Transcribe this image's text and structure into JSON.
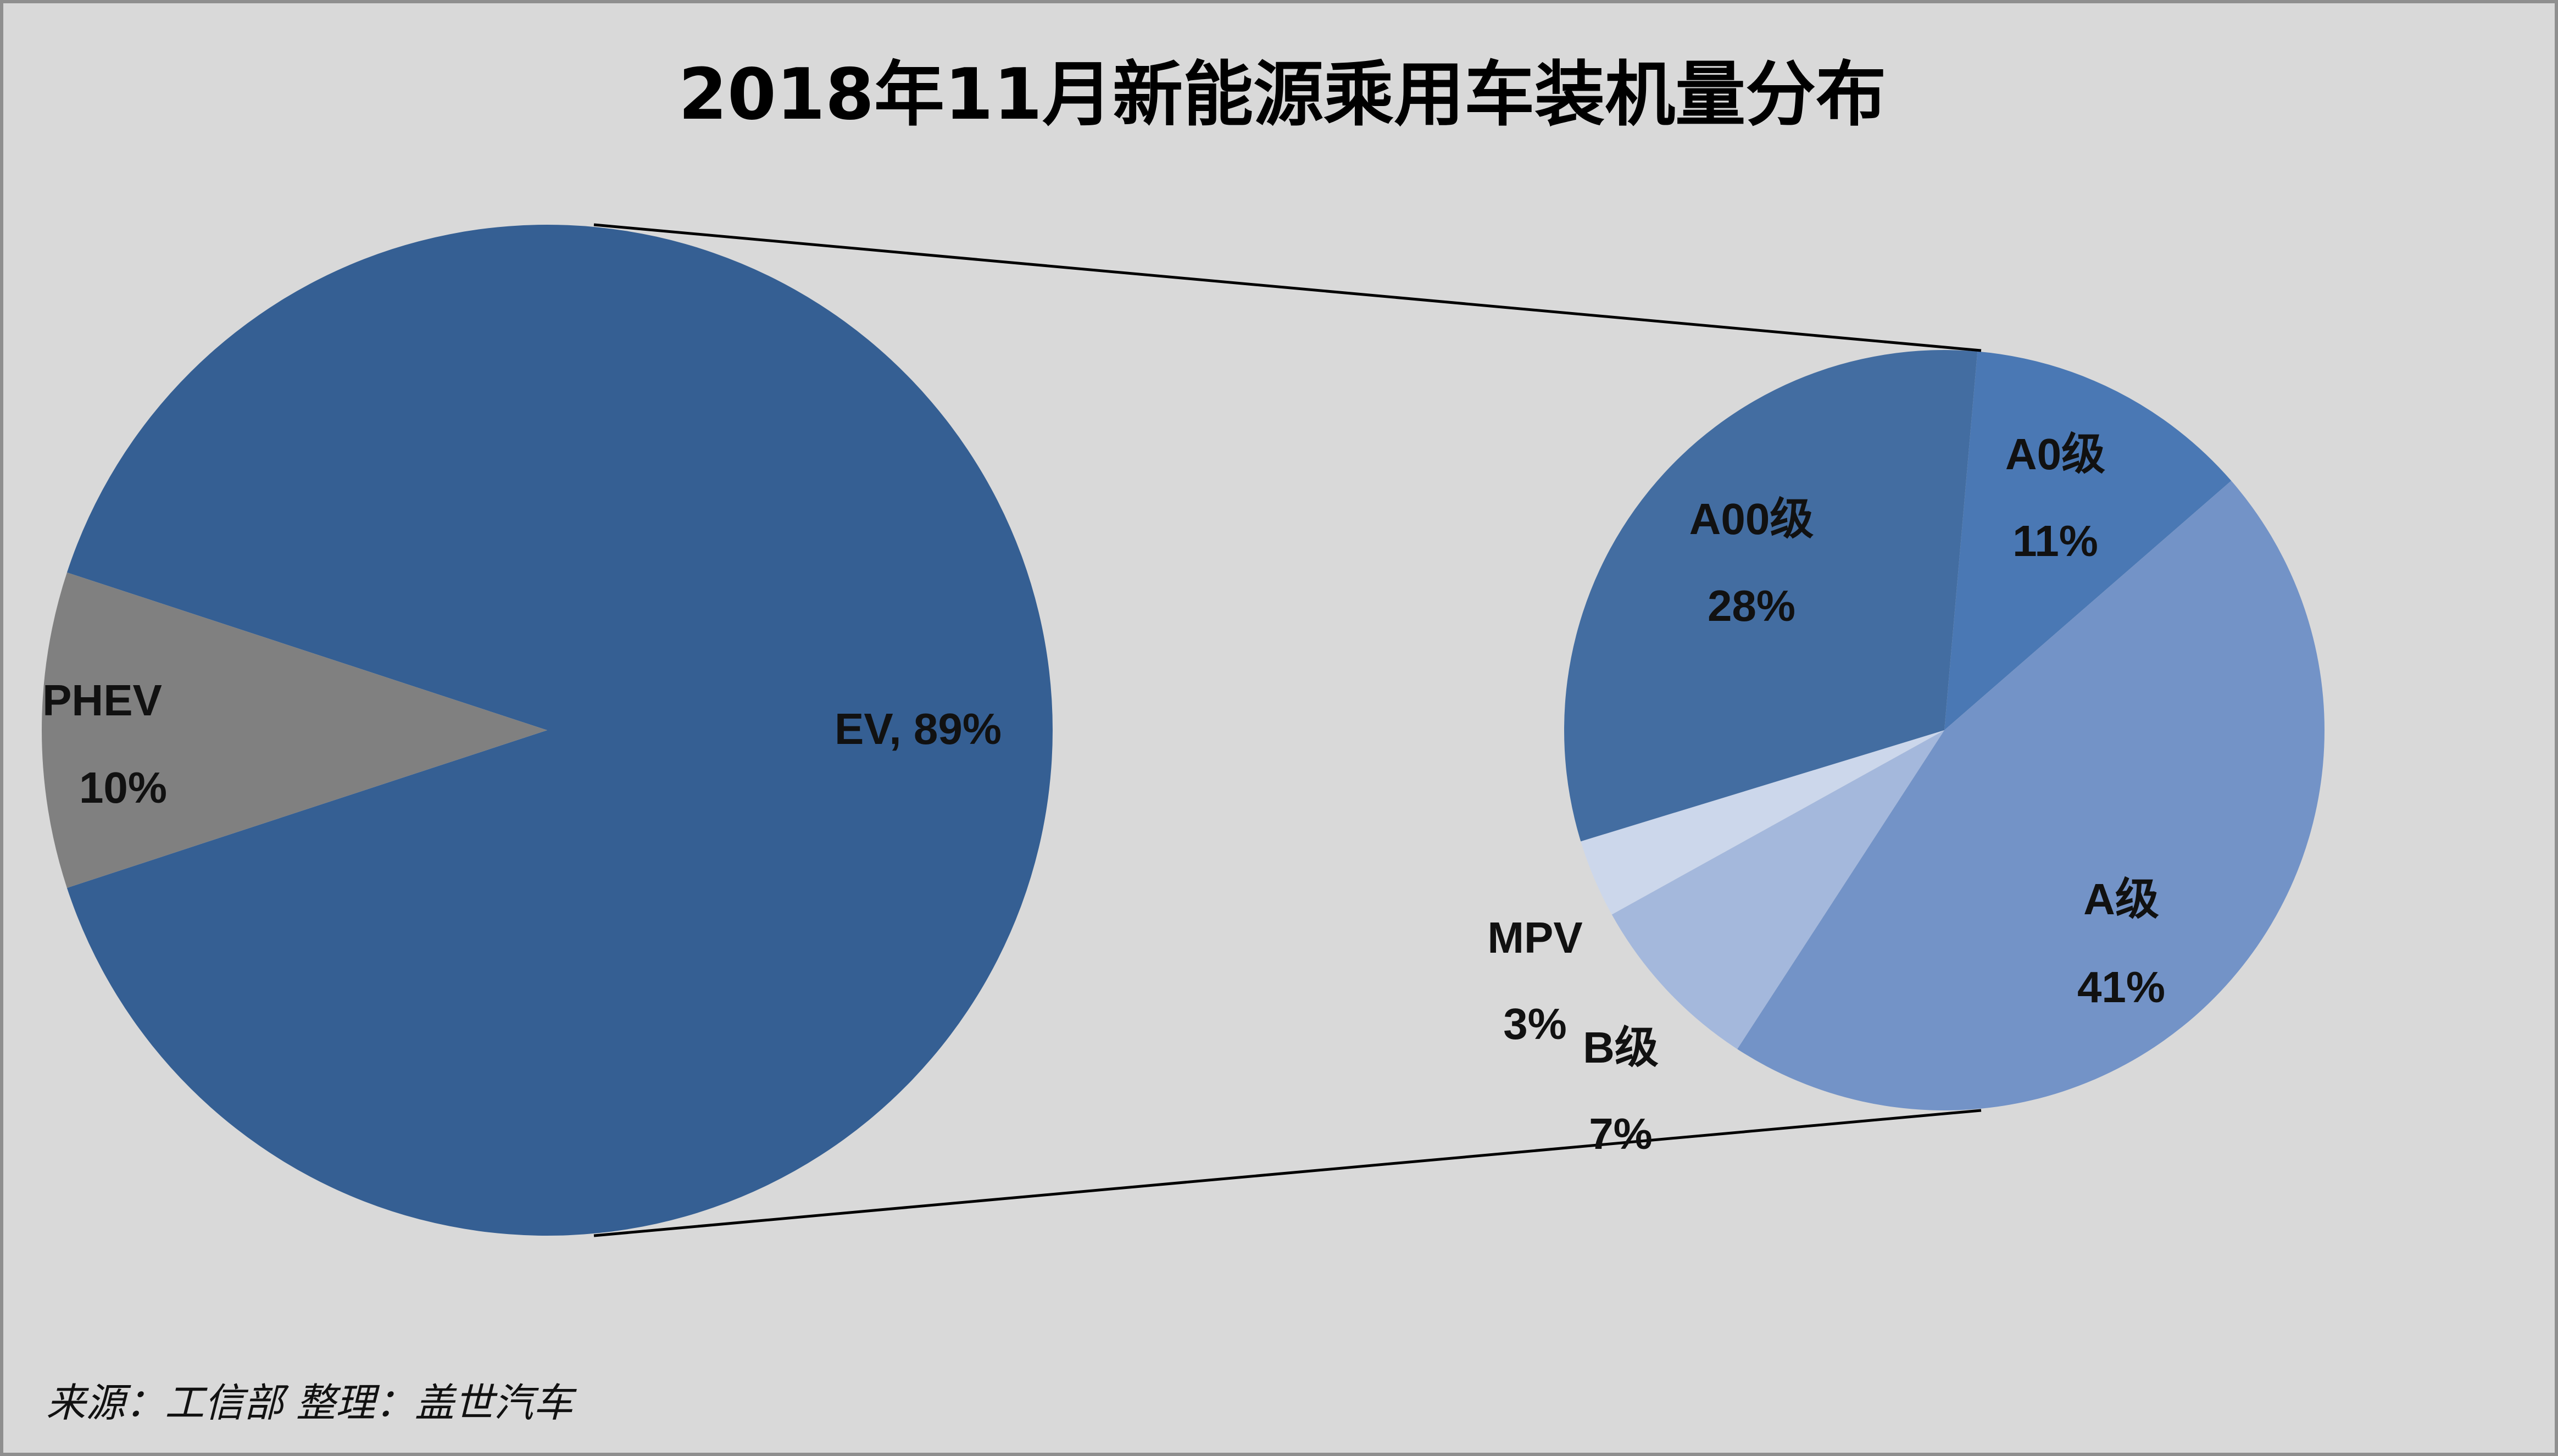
{
  "chart_data": {
    "type": "pie",
    "title": "2018年11月新能源乘用车装机量分布",
    "main_pie": {
      "slices": [
        {
          "name": "EV",
          "value": 89,
          "label": "EV, 89%",
          "color": "#355f93"
        },
        {
          "name": "PHEV",
          "value": 10,
          "label_lines": [
            "PHEV",
            "10%"
          ],
          "color": "#808080"
        }
      ]
    },
    "breakdown_pie": {
      "parent": "EV",
      "slices": [
        {
          "name": "A0级",
          "value": 11,
          "label_lines": [
            "A0级",
            "11%"
          ],
          "color": "#4a78b4"
        },
        {
          "name": "A级",
          "value": 41,
          "label_lines": [
            "A级",
            "41%"
          ],
          "color": "#7393c7"
        },
        {
          "name": "B级",
          "value": 7,
          "label_lines": [
            "B级",
            "7%"
          ],
          "color": "#a4b8dc"
        },
        {
          "name": "MPV",
          "value": 3,
          "label_lines": [
            "MPV",
            "3%"
          ],
          "color": "#ccd7eb"
        },
        {
          "name": "A00级",
          "value": 28,
          "label_lines": [
            "A00级",
            "28%"
          ],
          "color": "#436da1"
        }
      ]
    },
    "source": "来源：工信部  整理：盖世汽车"
  }
}
